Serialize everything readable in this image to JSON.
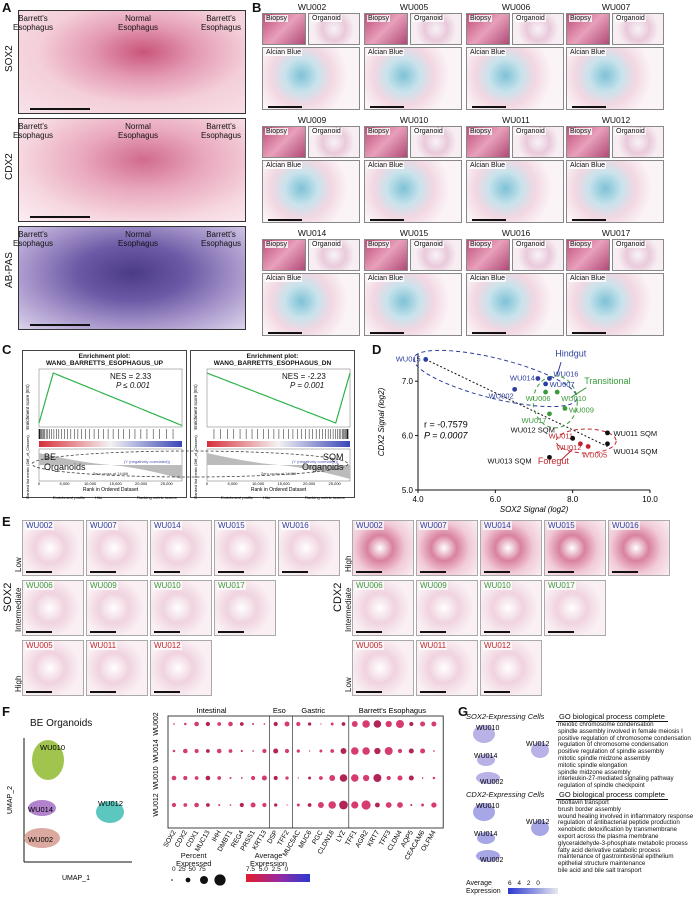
{
  "panels": {
    "A": "A",
    "B": "B",
    "C": "C",
    "D": "D",
    "E": "E",
    "F": "F",
    "G": "G"
  },
  "panelA": {
    "rows": [
      {
        "stain": "SOX2",
        "left": "Barrett's\nEsophagus",
        "mid": "Normal\nEsophagus",
        "right": "Barrett's\nEsophagus"
      },
      {
        "stain": "CDX2",
        "left": "Barrett's\nEsophagus",
        "mid": "Normal\nEsophagus",
        "right": "Barrett's\nEsophagus"
      },
      {
        "stain": "AB-PAS",
        "left": "Barrett's\nEsophagus",
        "mid": "Normal\nEsophagus",
        "right": "Barrett's\nEsophagus"
      }
    ]
  },
  "panelB": {
    "samples": [
      "WU002",
      "WU005",
      "WU006",
      "WU007",
      "WU009",
      "WU010",
      "WU011",
      "WU012",
      "WU014",
      "WU015",
      "WU016",
      "WU017"
    ],
    "biopsy": "Biopsy",
    "organoid": "Organoid",
    "alcian": "Alcian Blue"
  },
  "panelC": {
    "plots": [
      {
        "title": "Enrichment plot: WANG_BARRETTS_ESOPHAGUS_UP",
        "nes": "NES = 2.33",
        "p": "P ≤ 0.001"
      },
      {
        "title": "Enrichment plot: WANG_BARRETTS_ESOPHAGUS_DN",
        "nes": "NES = -2.23",
        "p": "P = 0.001"
      }
    ],
    "left_group": "BE\nOrganoids",
    "right_group": "SQM\nOrganoids",
    "ylab_top": "Enrichment score (ES)",
    "ylab_bot": "Ranked list metric (Diff_of_Classes)",
    "xlab": "Rank in Ordered Dataset",
    "legend": [
      "Enrichment profile",
      "Hits",
      "Ranking metric scores"
    ],
    "zero": "Zero cross at 14466",
    "corr": "('r' (negatively correlated))",
    "ticks": [
      "0",
      "5,000",
      "10,000",
      "15,000",
      "20,000",
      "25,000"
    ]
  },
  "chart_data": {
    "type": "scatter",
    "xlabel": "SOX2 Signal (log2)",
    "ylabel": "CDX2 Signal (log2)",
    "xlim": [
      4.0,
      10.0
    ],
    "ylim": [
      5.0,
      7.5
    ],
    "xticks": [
      "4.0",
      "6.0",
      "8.0",
      "10.0"
    ],
    "yticks": [
      "5.0",
      "6.0",
      "7.0"
    ],
    "annotations": {
      "r": "r = -0.7579",
      "p": "P = 0.0007",
      "groups": [
        "Hindgut",
        "Transitional",
        "Foregut"
      ]
    },
    "points": [
      {
        "label": "WU015",
        "x": 4.2,
        "y": 7.4,
        "color": "#2c3e9e"
      },
      {
        "label": "WU014",
        "x": 7.1,
        "y": 7.05,
        "color": "#2c3e9e"
      },
      {
        "label": "WU016",
        "x": 7.4,
        "y": 7.05,
        "color": "#2c3e9e"
      },
      {
        "label": "WU007",
        "x": 7.3,
        "y": 6.95,
        "color": "#2c3e9e"
      },
      {
        "label": "WU002",
        "x": 6.5,
        "y": 6.85,
        "color": "#2c3e9e"
      },
      {
        "label": "WU006",
        "x": 7.3,
        "y": 6.8,
        "color": "#3a9a3a"
      },
      {
        "label": "WU010",
        "x": 7.6,
        "y": 6.8,
        "color": "#3a9a3a"
      },
      {
        "label": "WU009",
        "x": 7.8,
        "y": 6.5,
        "color": "#3a9a3a"
      },
      {
        "label": "WU017",
        "x": 7.4,
        "y": 6.4,
        "color": "#3a9a3a"
      },
      {
        "label": "WU011 SQM",
        "x": 8.9,
        "y": 6.05,
        "color": "#111111"
      },
      {
        "label": "WU011",
        "x": 8.0,
        "y": 5.95,
        "color": "#c0262d"
      },
      {
        "label": "WU012",
        "x": 8.2,
        "y": 5.85,
        "color": "#c0262d"
      },
      {
        "label": "WU005",
        "x": 8.4,
        "y": 5.8,
        "color": "#c0262d"
      },
      {
        "label": "WU012 SQM",
        "x": 8.0,
        "y": 5.95,
        "color": "#111111"
      },
      {
        "label": "WU014 SQM",
        "x": 8.9,
        "y": 5.85,
        "color": "#111111"
      },
      {
        "label": "WU013 SQM",
        "x": 7.4,
        "y": 5.6,
        "color": "#111111"
      }
    ]
  },
  "panelE": {
    "sox2": {
      "stain": "SOX2",
      "levels": [
        "Low",
        "Intermediate",
        "High"
      ],
      "rows": [
        [
          "WU002",
          "WU007",
          "WU014",
          "WU015",
          "WU016"
        ],
        [
          "WU006",
          "WU009",
          "WU010",
          "WU017"
        ],
        [
          "WU005",
          "WU011",
          "WU012"
        ]
      ]
    },
    "cdx2": {
      "stain": "CDX2",
      "levels": [
        "High",
        "Intermediate",
        "Low"
      ],
      "rows": [
        [
          "WU002",
          "WU007",
          "WU014",
          "WU015",
          "WU016"
        ],
        [
          "WU006",
          "WU009",
          "WU010",
          "WU017"
        ],
        [
          "WU005",
          "WU011",
          "WU012"
        ]
      ]
    }
  },
  "panelF": {
    "title": "BE Organoids",
    "umap_x": "UMAP_1",
    "umap_y": "UMAP_2",
    "clusters": [
      "WU010",
      "WU012",
      "WU014",
      "WU002"
    ],
    "groups": [
      "Intestinal",
      "Eso",
      "Gastric",
      "Barrett's Esophagus"
    ],
    "genes": [
      "SOX2",
      "CDX2",
      "CDX1",
      "MUC13",
      "IHH",
      "DMBT1",
      "REG4",
      "PRSS1",
      "KRT13",
      "DSP",
      "TFF2",
      "MUC5AC",
      "MUC6",
      "PGC",
      "CLDN18",
      "LYZ",
      "TFF1",
      "AGR2",
      "KRT7",
      "TFF3",
      "CLDN4",
      "AQP5",
      "CEACAM6",
      "OLFM4"
    ],
    "samples": [
      "WU002",
      "WU014",
      "WU010",
      "WU012"
    ],
    "pct_label": "Percent\nExpressed",
    "pct_ticks": [
      "0",
      "25",
      "50",
      "75"
    ],
    "avg_label": "Average\nExpression",
    "avg_ticks": [
      "7.5",
      "5.0",
      "2.5",
      "0"
    ]
  },
  "panelG": {
    "sox2": {
      "title": "SOX2-Expressing Cells",
      "go": "GO biological process complete",
      "terms": [
        "meiotic chromosome condensation",
        "spindle assembly involved in female meiosis I",
        "positive regulation of chromosome condensation",
        "regulation of chromosome condensation",
        "positive regulation of spindle assembly",
        "mitotic spindle midzone assembly",
        "mitotic spindle elongation",
        "spindle midzone assembly",
        "interleukin-27-mediated signaling pathway",
        "regulation of spindle checkpoint"
      ]
    },
    "cdx2": {
      "title": "CDX2-Expressing Cells",
      "go": "GO biological process complete",
      "terms": [
        "riboflavin transport",
        "brush border assembly",
        "wound healing involved in inflammatory response",
        "regulation of antibacterial peptide production",
        "xenobiotic detoxification by transmembrane",
        "export across the plasma membrane",
        "glyceraldehyde-3-phosphate metabolic process",
        "fatty acid derivative catabolic process",
        "maintenance of gastrointestinal epithelium",
        "epithelial structure maintenance",
        "bile acid and bile salt transport"
      ]
    },
    "clusters": [
      "WU010",
      "WU012",
      "WU014",
      "WU002"
    ],
    "avg_label": "Average\nExpression",
    "avg_ticks": [
      "6",
      "4",
      "2",
      "0"
    ]
  }
}
